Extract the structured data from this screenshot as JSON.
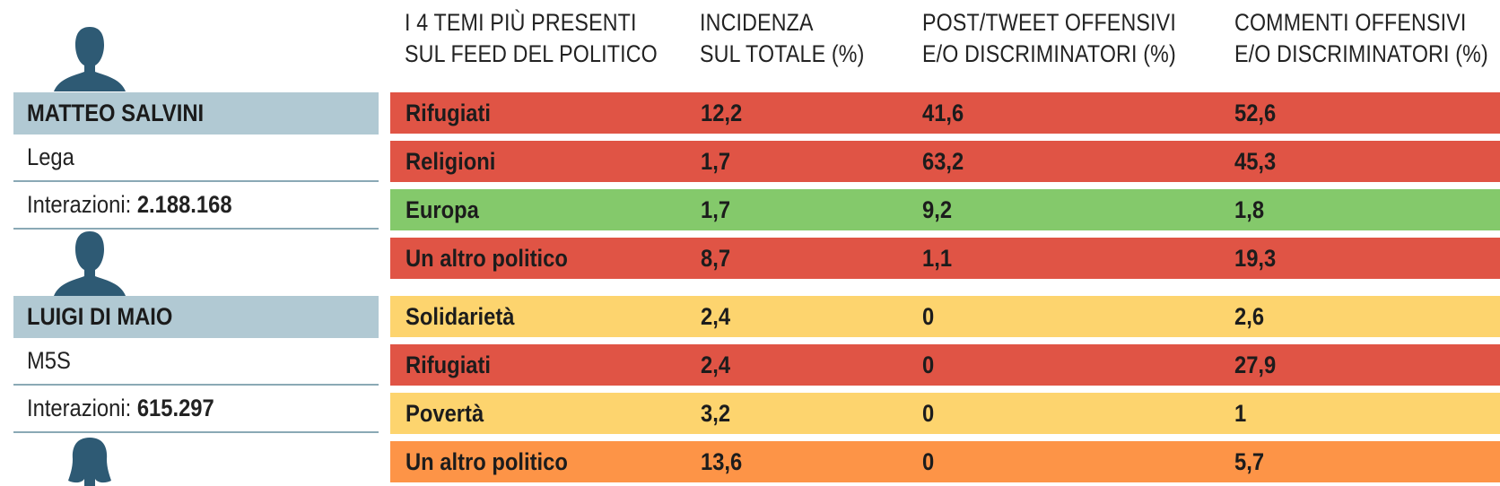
{
  "chart_data": {
    "type": "table",
    "columns": [
      "I 4 TEMI PIÙ PRESENTI SUL FEED DEL POLITICO",
      "INCIDENZA SUL TOTALE (%)",
      "POST/TWEET OFFENSIVI E/O DISCRIMINATORI (%)",
      "COMMENTI OFFENSIVI E/O DISCRIMINATORI (%)"
    ],
    "header_lines": [
      [
        "I 4 TEMI PIÙ PRESENTI",
        "SUL FEED DEL POLITICO"
      ],
      [
        "INCIDENZA",
        "SUL TOTALE (%)"
      ],
      [
        "POST/TWEET OFFENSIVI",
        "E/O DISCRIMINATORI (%)"
      ],
      [
        "COMMENTI OFFENSIVI",
        "E/O DISCRIMINATORI (%)"
      ]
    ],
    "politicians": [
      {
        "name": "MATTEO SALVINI",
        "party": "Lega",
        "interactions_label": "Interazioni:",
        "interactions": "2.188.168",
        "avatar": "male-silhouette-icon",
        "rows": [
          {
            "tema": "Rifugiati",
            "incidenza": "12,2",
            "post": "41,6",
            "commenti": "52,6",
            "color": "#e05445"
          },
          {
            "tema": "Religioni",
            "incidenza": "1,7",
            "post": "63,2",
            "commenti": "45,3",
            "color": "#e05445"
          },
          {
            "tema": "Europa",
            "incidenza": "1,7",
            "post": "9,2",
            "commenti": "1,8",
            "color": "#84c96b"
          },
          {
            "tema": "Un altro politico",
            "incidenza": "8,7",
            "post": "1,1",
            "commenti": "19,3",
            "color": "#e05445"
          }
        ]
      },
      {
        "name": "LUIGI DI MAIO",
        "party": "M5S",
        "interactions_label": "Interazioni:",
        "interactions": "615.297",
        "avatar": "male-silhouette-icon",
        "rows": [
          {
            "tema": "Solidarietà",
            "incidenza": "2,4",
            "post": "0",
            "commenti": "2,6",
            "color": "#fdd46e"
          },
          {
            "tema": "Rifugiati",
            "incidenza": "2,4",
            "post": "0",
            "commenti": "27,9",
            "color": "#e05445"
          },
          {
            "tema": "Povertà",
            "incidenza": "3,2",
            "post": "0",
            "commenti": "1",
            "color": "#fdd46e"
          },
          {
            "tema": "Un altro politico",
            "incidenza": "13,6",
            "post": "0",
            "commenti": "5,7",
            "color": "#fd9447"
          }
        ]
      }
    ],
    "next_avatar": "female-silhouette-icon",
    "avatar_color": "#2e5a74"
  }
}
